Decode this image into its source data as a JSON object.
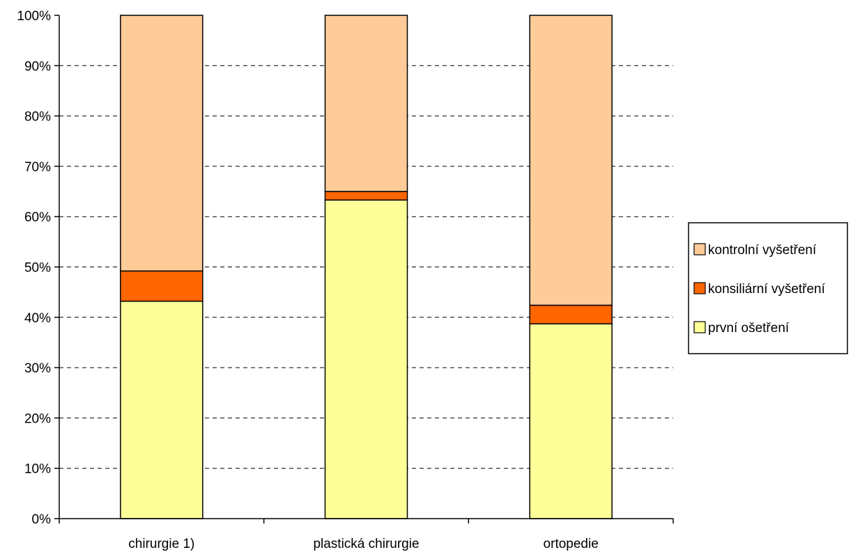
{
  "chart_data": {
    "type": "bar",
    "stacked": true,
    "percent": true,
    "categories": [
      "chirurgie 1)",
      "plastická chirurgie",
      "ortopedie"
    ],
    "series": [
      {
        "name": "první ošetření",
        "color": "#FFFF99",
        "values": [
          43.2,
          63.3,
          38.7
        ]
      },
      {
        "name": "konsiliární vyšetření",
        "color": "#FF6600",
        "values": [
          6.0,
          1.7,
          3.7
        ]
      },
      {
        "name": "kontrolní vyšetření",
        "color": "#FFCC99",
        "values": [
          50.8,
          35.0,
          57.6
        ]
      }
    ],
    "y_ticks": [
      "0%",
      "10%",
      "20%",
      "30%",
      "40%",
      "50%",
      "60%",
      "70%",
      "80%",
      "90%",
      "100%"
    ],
    "ylim": [
      0,
      100
    ],
    "grid": "horizontal-dashed",
    "legend": {
      "position": "right",
      "entries": [
        "kontrolní vyšetření",
        "konsiliární vyšetření",
        "první ošetření"
      ]
    }
  }
}
